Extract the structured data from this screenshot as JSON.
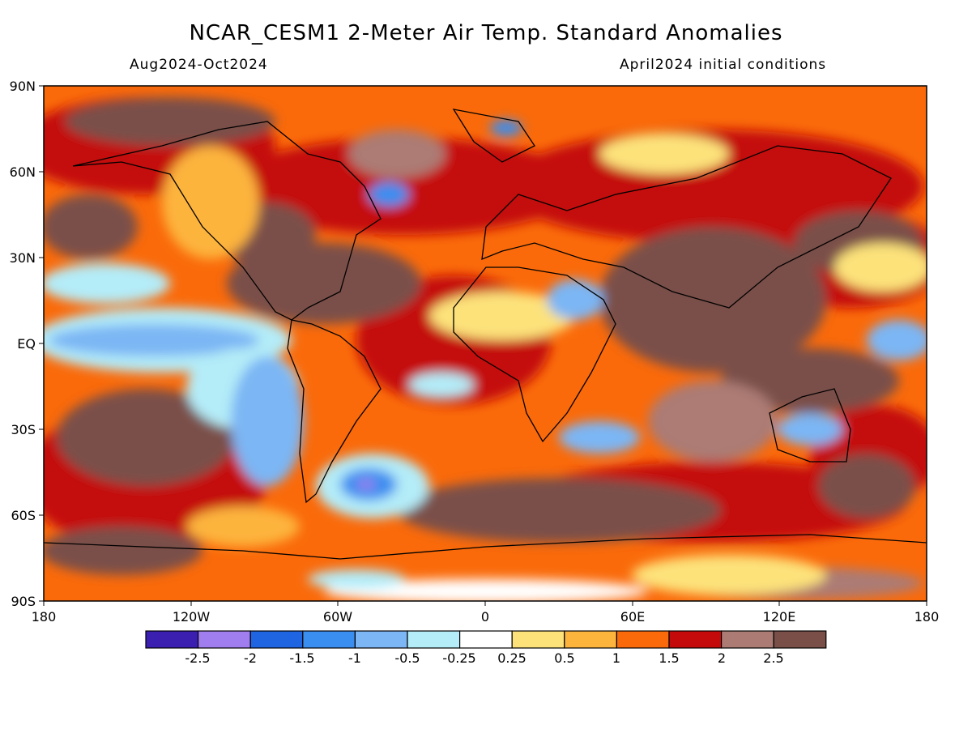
{
  "header": {
    "title": "NCAR_CESM1 2-Meter Air Temp. Standard Anomalies",
    "period": "Aug2024-Oct2024",
    "initial_conditions": "April2024 initial conditions"
  },
  "map": {
    "projection": "equirectangular",
    "lat_range": [
      -90,
      90
    ],
    "lon_range": [
      -180,
      180
    ],
    "lat_labels": [
      "90N",
      "60N",
      "30N",
      "EQ",
      "30S",
      "60S",
      "90S"
    ],
    "lon_labels": [
      "180",
      "120W",
      "60W",
      "0",
      "60E",
      "120E",
      "180"
    ],
    "field": "2-meter air temperature standard anomaly"
  },
  "colorbar": {
    "colors": [
      "#3a1fb0",
      "#a07ef0",
      "#1f64e0",
      "#3a8ef0",
      "#7cb6f4",
      "#b4ecf8",
      "#ffffff",
      "#fde27a",
      "#fdb43c",
      "#fa6a0a",
      "#c40a0a",
      "#ac7c74",
      "#7a4f48"
    ],
    "tick_labels": [
      "-2.5",
      "-2",
      "-1.5",
      "-1",
      "-0.5",
      "-0.25",
      "0.25",
      "0.5",
      "1",
      "1.5",
      "2",
      "2.5"
    ]
  }
}
